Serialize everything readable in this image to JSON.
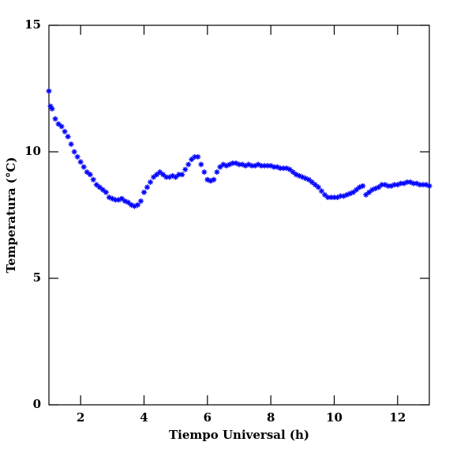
{
  "chart_data": {
    "type": "scatter",
    "x_label": "Tiempo Universal (h)",
    "y_label": "Temperatura (°C)",
    "xlim": [
      1,
      13
    ],
    "ylim": [
      0,
      15
    ],
    "xticks": [
      2,
      4,
      6,
      8,
      10,
      12
    ],
    "yticks": [
      0,
      5,
      10,
      15
    ],
    "series": [
      {
        "color": "#0000ff",
        "x": [
          1.0,
          1.05,
          1.1,
          1.2,
          1.3,
          1.4,
          1.5,
          1.6,
          1.7,
          1.8,
          1.9,
          2.0,
          2.1,
          2.2,
          2.3,
          2.4,
          2.5,
          2.6,
          2.7,
          2.8,
          2.9,
          3.0,
          3.1,
          3.2,
          3.3,
          3.4,
          3.5,
          3.6,
          3.7,
          3.8,
          3.9,
          4.0,
          4.1,
          4.2,
          4.3,
          4.4,
          4.5,
          4.6,
          4.7,
          4.8,
          4.9,
          5.0,
          5.1,
          5.2,
          5.3,
          5.4,
          5.5,
          5.6,
          5.7,
          5.8,
          5.9,
          6.0,
          6.1,
          6.2,
          6.3,
          6.4,
          6.5,
          6.6,
          6.7,
          6.8,
          6.9,
          7.0,
          7.1,
          7.2,
          7.3,
          7.4,
          7.5,
          7.6,
          7.7,
          7.8,
          7.9,
          8.0,
          8.1,
          8.2,
          8.3,
          8.4,
          8.5,
          8.6,
          8.7,
          8.8,
          8.9,
          9.0,
          9.1,
          9.2,
          9.3,
          9.4,
          9.5,
          9.6,
          9.7,
          9.8,
          9.9,
          10.0,
          10.1,
          10.2,
          10.3,
          10.4,
          10.5,
          10.6,
          10.7,
          10.8,
          10.9,
          11.0,
          11.1,
          11.2,
          11.3,
          11.4,
          11.5,
          11.6,
          11.7,
          11.8,
          11.9,
          12.0,
          12.1,
          12.2,
          12.3,
          12.4,
          12.5,
          12.6,
          12.7,
          12.8,
          12.9,
          13.0
        ],
        "values": [
          12.4,
          11.8,
          11.7,
          11.3,
          11.1,
          11.0,
          10.8,
          10.6,
          10.3,
          10.0,
          9.8,
          9.6,
          9.4,
          9.2,
          9.1,
          8.9,
          8.7,
          8.6,
          8.5,
          8.4,
          8.2,
          8.15,
          8.1,
          8.1,
          8.15,
          8.05,
          8.0,
          7.9,
          7.85,
          7.9,
          8.05,
          8.4,
          8.6,
          8.8,
          9.0,
          9.1,
          9.2,
          9.1,
          9.0,
          9.0,
          9.05,
          9.0,
          9.1,
          9.1,
          9.3,
          9.5,
          9.7,
          9.8,
          9.8,
          9.5,
          9.2,
          8.9,
          8.85,
          8.9,
          9.2,
          9.4,
          9.5,
          9.45,
          9.5,
          9.55,
          9.55,
          9.5,
          9.5,
          9.45,
          9.5,
          9.45,
          9.45,
          9.5,
          9.45,
          9.45,
          9.45,
          9.45,
          9.4,
          9.4,
          9.35,
          9.35,
          9.35,
          9.3,
          9.2,
          9.1,
          9.05,
          9.0,
          8.95,
          8.9,
          8.8,
          8.7,
          8.6,
          8.45,
          8.3,
          8.2,
          8.2,
          8.2,
          8.2,
          8.25,
          8.25,
          8.3,
          8.35,
          8.4,
          8.5,
          8.6,
          8.65,
          8.3,
          8.4,
          8.5,
          8.55,
          8.6,
          8.7,
          8.7,
          8.65,
          8.65,
          8.7,
          8.7,
          8.75,
          8.75,
          8.8,
          8.8,
          8.75,
          8.75,
          8.7,
          8.7,
          8.7,
          8.65
        ]
      }
    ]
  }
}
